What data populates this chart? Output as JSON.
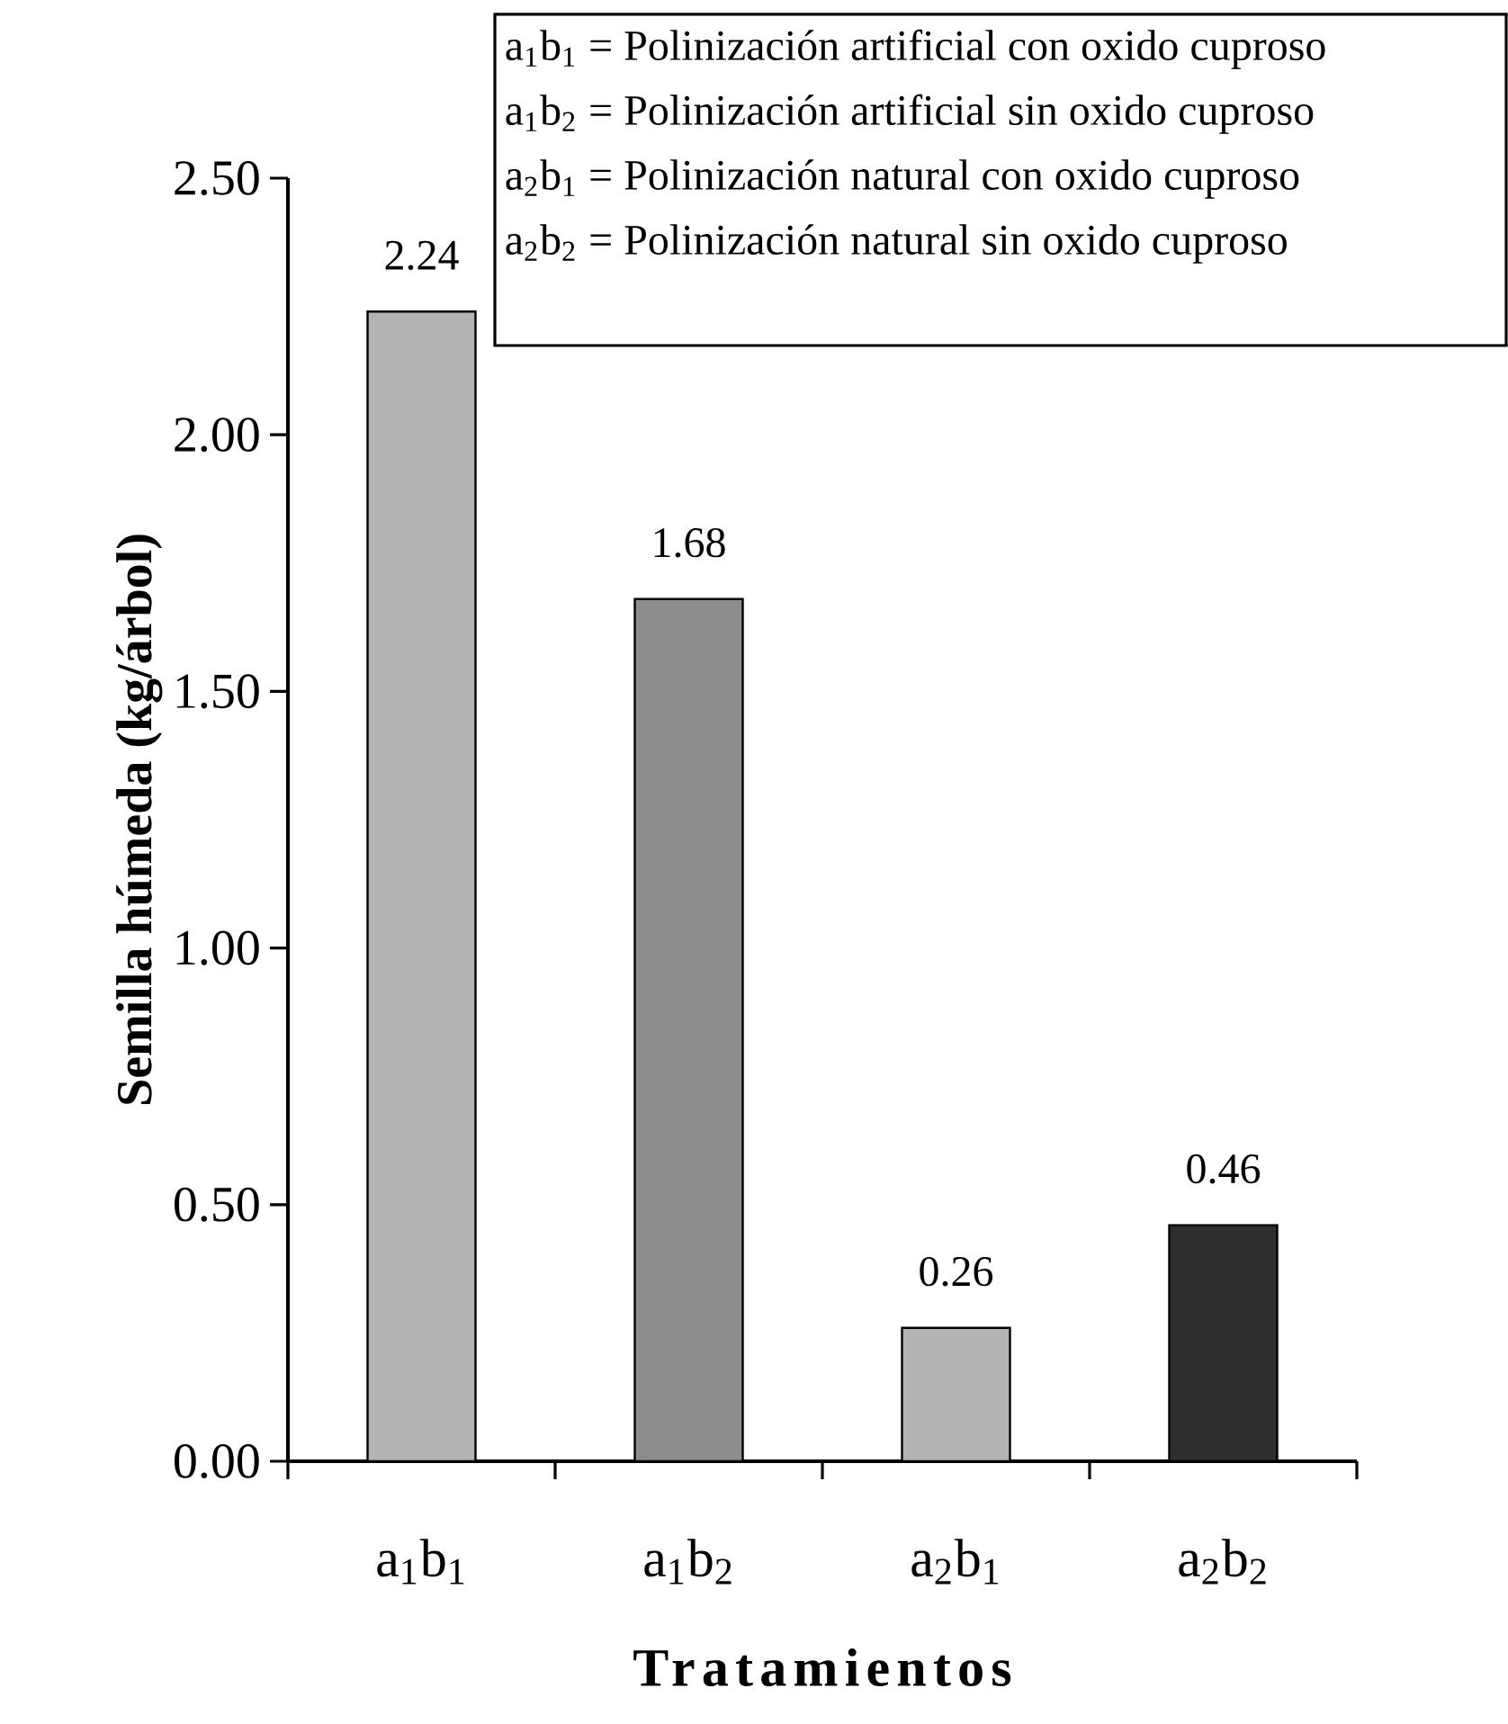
{
  "chart_data": {
    "type": "bar",
    "xlabel": "Tratamientos",
    "ylabel": "Semilla húmeda (kg/árbol)",
    "categories": [
      "a$_{1}$b$_{1}$",
      "a$_{1}$b$_{2}$",
      "a$_{2}$b$_{1}$",
      "a$_{2}$b$_{2}$"
    ],
    "values": [
      2.24,
      1.68,
      0.26,
      0.46
    ],
    "colors": [
      "#b4b4b4",
      "#8c8c8c",
      "#b4b4b4",
      "#2e2e2e"
    ],
    "data_labels": true,
    "ylim": [
      0,
      2.5
    ],
    "yticks": [
      {
        "value": 0,
        "label": "0.00"
      },
      {
        "value": 0.5,
        "label": "0.50"
      },
      {
        "value": 1.0,
        "label": "1.00"
      },
      {
        "value": 1.5,
        "label": "1.50"
      },
      {
        "value": 2.0,
        "label": "2.00"
      },
      {
        "value": 2.5,
        "label": "2.50"
      }
    ],
    "annotations": [
      "a$_{1}$b$_{1}$ = Polinización artificial con oxido cuproso",
      "a$_{1}$b$_{2}$ = Polinización artificial sin oxido cuproso",
      "a$_{2}$b$_{1}$ = Polinización natural con oxido cuproso",
      "a$_{2}$b$_{2}$ = Polinización natural  sin oxido cuproso"
    ]
  }
}
